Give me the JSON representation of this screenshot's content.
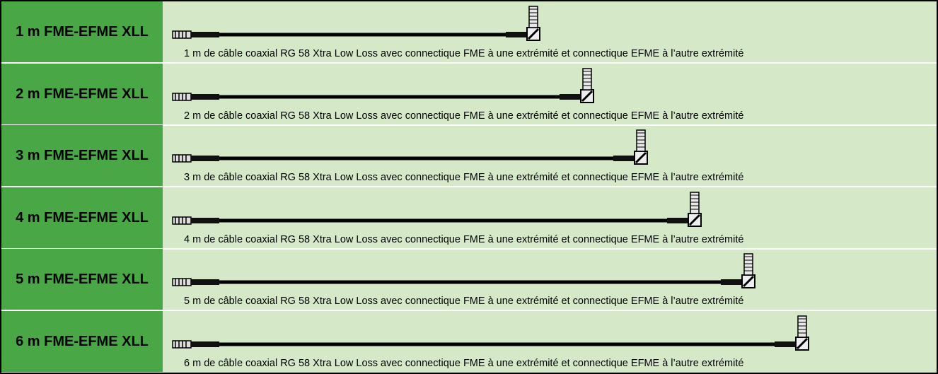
{
  "table": {
    "rows": [
      {
        "label": "1 m FME-EFME XLL",
        "description": "1 m de câble coaxial RG 58 Xtra Low Loss avec connectique FME à une extrémité et connectique EFME à l’autre extrémité"
      },
      {
        "label": "2 m FME-EFME XLL",
        "description": "2 m de câble coaxial RG 58 Xtra Low Loss avec connectique FME à une extrémité et connectique EFME à l’autre extrémité"
      },
      {
        "label": "3 m FME-EFME XLL",
        "description": "3 m de câble coaxial RG 58 Xtra Low Loss avec connectique FME à une extrémité et connectique EFME à l’autre extrémité"
      },
      {
        "label": "4 m FME-EFME XLL",
        "description": "4 m de câble coaxial RG 58 Xtra Low Loss avec connectique FME à une extrémité et connectique EFME à l’autre extrémité"
      },
      {
        "label": "5 m FME-EFME XLL",
        "description": "5 m de câble coaxial RG 58 Xtra Low Loss avec connectique FME à une extrémité et connectique EFME à l’autre extrémité"
      },
      {
        "label": "6 m FME-EFME XLL",
        "description": "6 m de câble coaxial RG 58 Xtra Low Loss avec connectique FME à une extrémité et connectique EFME à l’autre extrémité"
      }
    ]
  }
}
